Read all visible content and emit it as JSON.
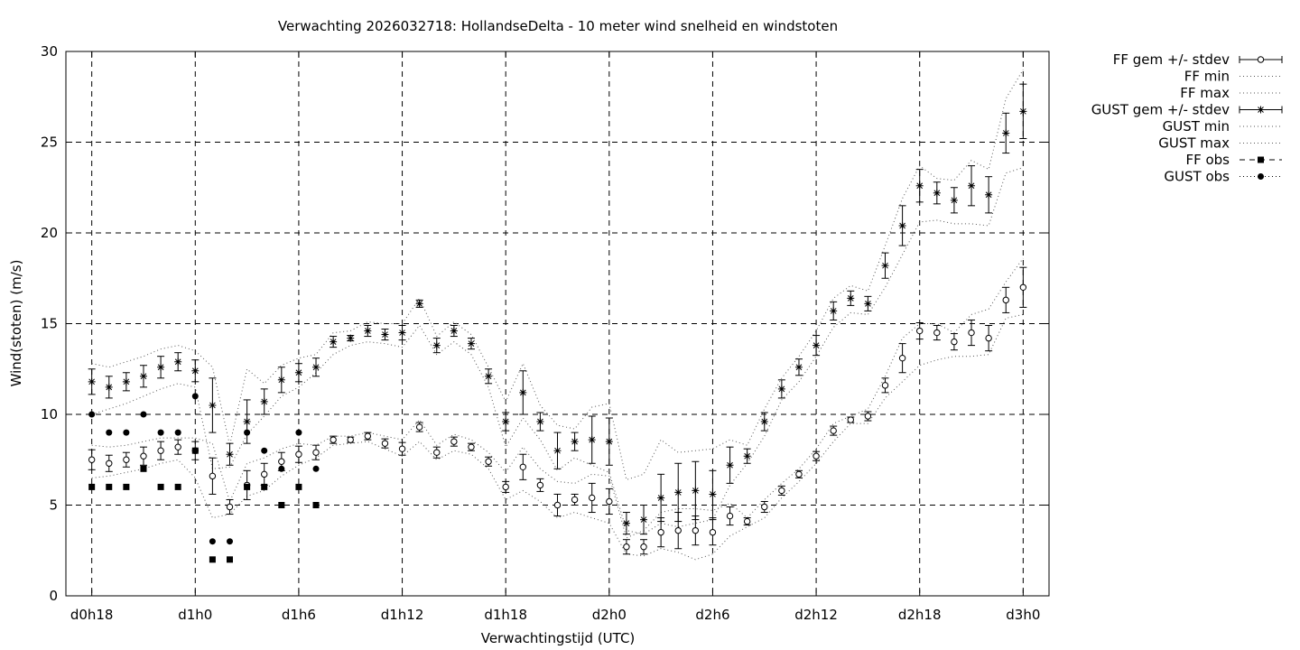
{
  "chart_data": {
    "type": "scatter",
    "title": "Verwachting 2026032718: HollandseDelta - 10 meter wind snelheid en windstoten",
    "xlabel": "Verwachtingstijd (UTC)",
    "ylabel": "Wind(stoten) (m/s)",
    "xlim": [
      -1.5,
      55.5
    ],
    "ylim": [
      0,
      30
    ],
    "grid": true,
    "x_ticks": [
      {
        "x": 0,
        "label": "d0h18"
      },
      {
        "x": 6,
        "label": "d1h0"
      },
      {
        "x": 12,
        "label": "d1h6"
      },
      {
        "x": 18,
        "label": "d1h12"
      },
      {
        "x": 24,
        "label": "d1h18"
      },
      {
        "x": 30,
        "label": "d2h0"
      },
      {
        "x": 36,
        "label": "d2h6"
      },
      {
        "x": 42,
        "label": "d2h12"
      },
      {
        "x": 48,
        "label": "d2h18"
      },
      {
        "x": 54,
        "label": "d3h0"
      }
    ],
    "y_ticks": [
      0,
      5,
      10,
      15,
      20,
      25,
      30
    ],
    "legend_position": "outside-right",
    "legend": [
      "FF gem +/- stdev",
      "FF min",
      "FF max",
      "GUST gem +/- stdev",
      "GUST min",
      "GUST max",
      "FF obs",
      "GUST obs"
    ],
    "ff_mean": {
      "x": [
        0,
        1,
        2,
        3,
        4,
        5,
        6,
        7,
        8,
        9,
        10,
        11,
        12,
        13,
        14,
        15,
        16,
        17,
        18,
        19,
        20,
        21,
        22,
        23,
        24,
        25,
        26,
        27,
        28,
        29,
        30,
        31,
        32,
        33,
        34,
        35,
        36,
        37,
        38,
        39,
        40,
        41,
        42,
        43,
        44,
        45,
        46,
        47,
        48,
        49,
        50,
        51,
        52,
        53,
        54
      ],
      "y": [
        7.5,
        7.3,
        7.5,
        7.7,
        8.0,
        8.2,
        8.0,
        6.6,
        4.9,
        6.1,
        6.7,
        7.4,
        7.8,
        7.9,
        8.6,
        8.6,
        8.8,
        8.4,
        8.1,
        9.3,
        7.9,
        8.5,
        8.2,
        7.4,
        6.0,
        7.1,
        6.1,
        5.0,
        5.3,
        5.4,
        5.2,
        2.7,
        2.7,
        3.5,
        3.6,
        3.6,
        3.5,
        4.4,
        4.1,
        4.9,
        5.8,
        6.7,
        7.7,
        9.1,
        9.7,
        9.9,
        11.6,
        13.1,
        14.6,
        14.5,
        14.0,
        14.5,
        14.2,
        16.3,
        17.0
      ],
      "stdev": [
        0.55,
        0.45,
        0.4,
        0.5,
        0.5,
        0.4,
        0.5,
        1.0,
        0.4,
        0.8,
        0.6,
        0.5,
        0.45,
        0.4,
        0.2,
        0.15,
        0.2,
        0.25,
        0.35,
        0.25,
        0.3,
        0.25,
        0.2,
        0.25,
        0.3,
        0.7,
        0.35,
        0.6,
        0.3,
        0.8,
        0.7,
        0.4,
        0.4,
        0.8,
        1.0,
        0.8,
        0.7,
        0.5,
        0.2,
        0.3,
        0.25,
        0.2,
        0.25,
        0.25,
        0.15,
        0.25,
        0.4,
        0.8,
        0.45,
        0.4,
        0.45,
        0.7,
        0.7,
        0.7,
        1.1
      ]
    },
    "ff_min": {
      "x": [
        0,
        1,
        2,
        3,
        4,
        5,
        6,
        7,
        8,
        9,
        10,
        11,
        12,
        13,
        14,
        15,
        16,
        17,
        18,
        19,
        20,
        21,
        22,
        23,
        24,
        25,
        26,
        27,
        28,
        29,
        30,
        31,
        32,
        33,
        34,
        35,
        36,
        37,
        38,
        39,
        40,
        41,
        42,
        43,
        44,
        45,
        46,
        47,
        48,
        49,
        50,
        51,
        52,
        53,
        54
      ],
      "y": [
        6.5,
        6.6,
        6.8,
        7.0,
        7.3,
        7.5,
        6.5,
        4.3,
        4.5,
        5.5,
        5.8,
        6.6,
        7.2,
        7.6,
        8.3,
        8.4,
        8.5,
        8.1,
        7.7,
        8.5,
        7.5,
        8.0,
        7.8,
        7.0,
        5.3,
        5.8,
        5.2,
        4.3,
        4.6,
        4.3,
        4.0,
        2.3,
        2.2,
        2.6,
        2.4,
        2.0,
        2.3,
        3.3,
        3.8,
        4.3,
        5.4,
        6.3,
        7.3,
        8.5,
        9.5,
        9.5,
        10.9,
        11.8,
        12.7,
        13.0,
        13.2,
        13.2,
        13.3,
        15.3,
        15.5
      ]
    },
    "ff_max": {
      "x": [
        0,
        1,
        2,
        3,
        4,
        5,
        6,
        7,
        8,
        9,
        10,
        11,
        12,
        13,
        14,
        15,
        16,
        17,
        18,
        19,
        20,
        21,
        22,
        23,
        24,
        25,
        26,
        27,
        28,
        29,
        30,
        31,
        32,
        33,
        34,
        35,
        36,
        37,
        38,
        39,
        40,
        41,
        42,
        43,
        44,
        45,
        46,
        47,
        48,
        49,
        50,
        51,
        52,
        53,
        54
      ],
      "y": [
        8.3,
        8.2,
        8.3,
        8.5,
        8.7,
        8.7,
        8.7,
        8.4,
        5.2,
        7.3,
        7.6,
        8.1,
        8.4,
        8.3,
        8.8,
        8.8,
        9.0,
        8.8,
        8.6,
        9.7,
        8.3,
        8.9,
        8.6,
        7.9,
        6.8,
        8.2,
        7.0,
        6.3,
        6.2,
        6.7,
        6.6,
        3.2,
        3.6,
        4.6,
        4.8,
        4.8,
        4.7,
        5.1,
        4.3,
        5.3,
        6.2,
        7.0,
        8.1,
        9.5,
        9.9,
        10.3,
        12.1,
        14.2,
        15.0,
        15.0,
        14.5,
        15.5,
        15.8,
        17.3,
        18.6
      ]
    },
    "gust_mean": {
      "x": [
        0,
        1,
        2,
        3,
        4,
        5,
        6,
        7,
        8,
        9,
        10,
        11,
        12,
        13,
        14,
        15,
        16,
        17,
        18,
        19,
        20,
        21,
        22,
        23,
        24,
        25,
        26,
        27,
        28,
        29,
        30,
        31,
        32,
        33,
        34,
        35,
        36,
        37,
        38,
        39,
        40,
        41,
        42,
        43,
        44,
        45,
        46,
        47,
        48,
        49,
        50,
        51,
        52,
        53,
        54
      ],
      "y": [
        11.8,
        11.5,
        11.8,
        12.1,
        12.6,
        12.9,
        12.4,
        10.5,
        7.8,
        9.6,
        10.7,
        11.9,
        12.3,
        12.6,
        14.0,
        14.2,
        14.6,
        14.4,
        14.5,
        16.1,
        13.8,
        14.6,
        13.9,
        12.1,
        9.6,
        11.2,
        9.6,
        8.0,
        8.5,
        8.6,
        8.5,
        4.0,
        4.2,
        5.4,
        5.7,
        5.8,
        5.6,
        7.2,
        7.7,
        9.6,
        11.4,
        12.6,
        13.8,
        15.7,
        16.4,
        16.1,
        18.2,
        20.4,
        22.6,
        22.2,
        21.8,
        22.6,
        22.1,
        25.5,
        26.7
      ]
    },
    "gust_stdev": [
      0.7,
      0.6,
      0.5,
      0.6,
      0.6,
      0.5,
      0.6,
      1.5,
      0.6,
      1.2,
      0.7,
      0.7,
      0.5,
      0.5,
      0.3,
      0.15,
      0.3,
      0.3,
      0.4,
      0.2,
      0.4,
      0.3,
      0.3,
      0.4,
      0.5,
      1.2,
      0.5,
      1.0,
      0.5,
      1.3,
      1.3,
      0.6,
      0.8,
      1.3,
      1.6,
      1.6,
      1.3,
      1.0,
      0.4,
      0.5,
      0.5,
      0.45,
      0.55,
      0.5,
      0.4,
      0.4,
      0.7,
      1.1,
      0.9,
      0.6,
      0.7,
      1.1,
      1.0,
      1.1,
      1.5
    ],
    "gust_min": {
      "x": [
        0,
        1,
        2,
        3,
        4,
        5,
        6,
        7,
        8,
        9,
        10,
        11,
        12,
        13,
        14,
        15,
        16,
        17,
        18,
        19,
        20,
        21,
        22,
        23,
        24,
        25,
        26,
        27,
        28,
        29,
        30,
        31,
        32,
        33,
        34,
        35,
        36,
        37,
        38,
        39,
        40,
        41,
        42,
        43,
        44,
        45,
        46,
        47,
        48,
        49,
        50,
        51,
        52,
        53,
        54
      ],
      "y": [
        10.0,
        10.3,
        10.6,
        11.0,
        11.4,
        11.7,
        11.5,
        7.0,
        7.1,
        8.9,
        9.9,
        11.0,
        11.5,
        12.3,
        13.3,
        13.8,
        14.0,
        13.9,
        13.7,
        14.9,
        13.3,
        14.0,
        13.3,
        11.5,
        8.2,
        9.8,
        8.6,
        6.9,
        7.6,
        7.2,
        6.8,
        3.6,
        3.4,
        4.0,
        3.8,
        4.0,
        4.2,
        6.1,
        7.3,
        8.8,
        10.8,
        11.8,
        13.2,
        14.8,
        15.6,
        15.5,
        17.0,
        18.8,
        20.6,
        20.7,
        20.5,
        20.5,
        20.4,
        23.3,
        23.6
      ]
    },
    "gust_max": {
      "x": [
        0,
        1,
        2,
        3,
        4,
        5,
        6,
        7,
        8,
        9,
        10,
        11,
        12,
        13,
        14,
        15,
        16,
        17,
        18,
        19,
        20,
        21,
        22,
        23,
        24,
        25,
        26,
        27,
        28,
        29,
        30,
        31,
        32,
        33,
        34,
        35,
        36,
        37,
        38,
        39,
        40,
        41,
        42,
        43,
        44,
        45,
        46,
        47,
        48,
        49,
        50,
        51,
        52,
        53,
        54
      ],
      "y": [
        12.8,
        12.6,
        12.9,
        13.2,
        13.6,
        13.8,
        13.5,
        12.6,
        8.3,
        12.5,
        11.7,
        12.7,
        13.1,
        13.3,
        14.5,
        14.6,
        15.1,
        15.0,
        15.0,
        16.4,
        14.3,
        15.1,
        14.4,
        12.6,
        10.7,
        12.8,
        10.5,
        9.4,
        9.2,
        10.4,
        10.6,
        6.4,
        6.7,
        8.6,
        7.9,
        8.0,
        8.1,
        8.6,
        8.3,
        10.3,
        12.0,
        13.2,
        14.6,
        16.4,
        17.1,
        16.8,
        19.3,
        21.9,
        23.7,
        23.0,
        22.9,
        24.0,
        23.5,
        27.4,
        29.0
      ]
    },
    "ff_obs": {
      "x": [
        0,
        1,
        2,
        3,
        4,
        5,
        6,
        7,
        8,
        9,
        10,
        11,
        12,
        13
      ],
      "y": [
        6,
        6,
        6,
        7,
        6,
        6,
        8,
        2,
        2,
        6,
        6,
        5,
        6,
        5
      ]
    },
    "gust_obs": {
      "x": [
        0,
        1,
        2,
        3,
        4,
        5,
        6,
        7,
        8,
        9,
        10,
        11,
        12,
        13
      ],
      "y": [
        10,
        9,
        9,
        10,
        9,
        9,
        11,
        3,
        3,
        9,
        8,
        7,
        9,
        7
      ]
    }
  }
}
